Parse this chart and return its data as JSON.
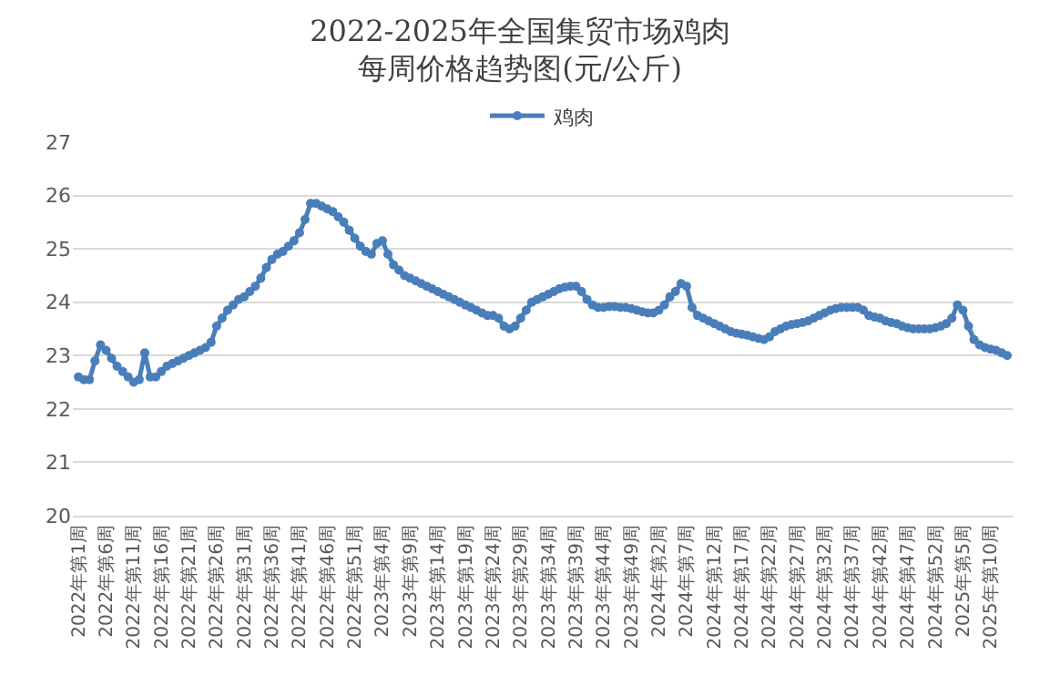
{
  "chart_data": {
    "type": "line",
    "title": "2022-2025年全国集贸市场鸡肉每周价格趋势图(元/公斤)",
    "categories": [
      "2022年第1周",
      null,
      null,
      null,
      null,
      "2022年第6周",
      null,
      null,
      null,
      null,
      "2022年第11周",
      null,
      null,
      null,
      null,
      "2022年第16周",
      null,
      null,
      null,
      null,
      "2022年第21周",
      null,
      null,
      null,
      null,
      "2022年第26周",
      null,
      null,
      null,
      null,
      "2022年第31周",
      null,
      null,
      null,
      null,
      "2022年第36周",
      null,
      null,
      null,
      null,
      "2022年第41周",
      null,
      null,
      null,
      null,
      "2022年第46周",
      null,
      null,
      null,
      null,
      "2022年第51周",
      null,
      null,
      null,
      null,
      "2023年第4周",
      null,
      null,
      null,
      null,
      "2023年第9周",
      null,
      null,
      null,
      null,
      "2023年第14周",
      null,
      null,
      null,
      null,
      "2023年第19周",
      null,
      null,
      null,
      null,
      "2023年第24周",
      null,
      null,
      null,
      null,
      "2023年第29周",
      null,
      null,
      null,
      null,
      "2023年第34周",
      null,
      null,
      null,
      null,
      "2023年第39周",
      null,
      null,
      null,
      null,
      "2023年第44周",
      null,
      null,
      null,
      null,
      "2023年第49周",
      null,
      null,
      null,
      null,
      "2024年第2周",
      null,
      null,
      null,
      null,
      "2024年第7周",
      null,
      null,
      null,
      null,
      "2024年第12周",
      null,
      null,
      null,
      null,
      "2024年第17周",
      null,
      null,
      null,
      null,
      "2024年第22周",
      null,
      null,
      null,
      null,
      "2024年第27周",
      null,
      null,
      null,
      null,
      "2024年第32周",
      null,
      null,
      null,
      null,
      "2024年第37周",
      null,
      null,
      null,
      null,
      "2024年第42周",
      null,
      null,
      null,
      null,
      "2024年第47周",
      null,
      null,
      null,
      null,
      "2024年第52周",
      null,
      null,
      null,
      null,
      "2025年第5周",
      null,
      null,
      null,
      null,
      "2025年第10周",
      null,
      null,
      null
    ],
    "series": [
      {
        "name": "鸡肉",
        "color": "#4a7ebb",
        "values": [
          22.6,
          22.55,
          22.55,
          22.9,
          23.2,
          23.1,
          22.95,
          22.8,
          22.7,
          22.6,
          22.5,
          22.55,
          23.05,
          22.6,
          22.6,
          22.7,
          22.8,
          22.85,
          22.9,
          22.95,
          23.0,
          23.05,
          23.1,
          23.15,
          23.25,
          23.55,
          23.7,
          23.85,
          23.95,
          24.05,
          24.1,
          24.2,
          24.3,
          24.45,
          24.65,
          24.8,
          24.9,
          24.95,
          25.05,
          25.15,
          25.3,
          25.55,
          25.85,
          25.85,
          25.8,
          25.75,
          25.7,
          25.6,
          25.5,
          25.35,
          25.2,
          25.05,
          24.95,
          24.9,
          25.1,
          25.15,
          24.9,
          24.7,
          24.6,
          24.5,
          24.45,
          24.4,
          24.35,
          24.3,
          24.25,
          24.2,
          24.15,
          24.1,
          24.05,
          24.0,
          23.95,
          23.9,
          23.85,
          23.8,
          23.75,
          23.75,
          23.7,
          23.55,
          23.5,
          23.55,
          23.7,
          23.85,
          24.0,
          24.05,
          24.1,
          24.15,
          24.2,
          24.25,
          24.28,
          24.3,
          24.3,
          24.2,
          24.05,
          23.95,
          23.9,
          23.9,
          23.92,
          23.92,
          23.9,
          23.9,
          23.88,
          23.85,
          23.82,
          23.8,
          23.8,
          23.85,
          23.95,
          24.1,
          24.2,
          24.35,
          24.3,
          23.9,
          23.75,
          23.7,
          23.65,
          23.6,
          23.55,
          23.5,
          23.45,
          23.42,
          23.4,
          23.38,
          23.35,
          23.32,
          23.3,
          23.35,
          23.45,
          23.5,
          23.55,
          23.58,
          23.6,
          23.62,
          23.65,
          23.7,
          23.75,
          23.8,
          23.85,
          23.88,
          23.9,
          23.9,
          23.9,
          23.9,
          23.85,
          23.75,
          23.72,
          23.7,
          23.65,
          23.62,
          23.6,
          23.55,
          23.52,
          23.5,
          23.5,
          23.5,
          23.5,
          23.52,
          23.55,
          23.6,
          23.7,
          23.95,
          23.85,
          23.55,
          23.3,
          23.2,
          23.15,
          23.12,
          23.1,
          23.05,
          23.0
        ]
      }
    ],
    "ylim": [
      20,
      27
    ],
    "yticks": [
      20,
      21,
      22,
      23,
      24,
      25,
      26,
      27
    ],
    "grid": "y",
    "legend": "top",
    "marker": "circle",
    "line_style": "solid"
  }
}
